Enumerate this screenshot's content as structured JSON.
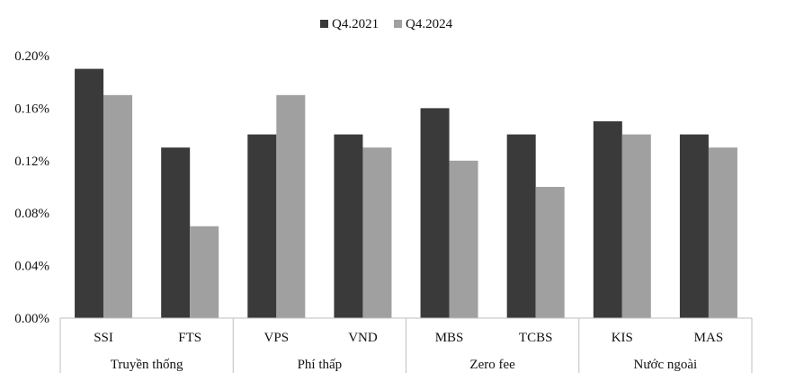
{
  "chart_data": {
    "type": "bar",
    "categories": [
      "SSI",
      "FTS",
      "VPS",
      "VND",
      "MBS",
      "TCBS",
      "KIS",
      "MAS"
    ],
    "groups": [
      {
        "label": "Truyền thống",
        "categories": [
          "SSI",
          "FTS"
        ]
      },
      {
        "label": "Phí thấp",
        "categories": [
          "VPS",
          "VND"
        ]
      },
      {
        "label": "Zero fee",
        "categories": [
          "MBS",
          "TCBS"
        ]
      },
      {
        "label": "Nước ngoài",
        "categories": [
          "KIS",
          "MAS"
        ]
      }
    ],
    "series": [
      {
        "name": "Q4.2021",
        "color": "#3a3a3a",
        "values": [
          0.19,
          0.13,
          0.14,
          0.14,
          0.16,
          0.14,
          0.15,
          0.14
        ]
      },
      {
        "name": "Q4.2024",
        "color": "#a0a0a0",
        "values": [
          0.17,
          0.07,
          0.17,
          0.13,
          0.12,
          0.1,
          0.14,
          0.13
        ]
      }
    ],
    "y_ticks": [
      "0.00%",
      "0.04%",
      "0.08%",
      "0.12%",
      "0.16%",
      "0.20%"
    ],
    "ylim": [
      0,
      0.2
    ],
    "grid": false,
    "legend_position": "top-center"
  }
}
